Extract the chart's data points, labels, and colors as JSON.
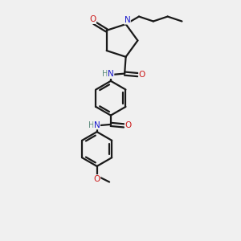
{
  "bg_color": "#f0f0f0",
  "bond_color": "#1a1a1a",
  "N_color": "#1a1acc",
  "O_color": "#cc1a1a",
  "H_color": "#5a8a7a",
  "line_width": 1.6,
  "fig_size": [
    3.0,
    3.0
  ],
  "dpi": 100,
  "xlim": [
    0,
    10
  ],
  "ylim": [
    0,
    10
  ]
}
